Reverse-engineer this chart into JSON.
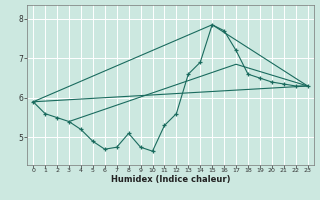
{
  "xlabel": "Humidex (Indice chaleur)",
  "bg_color": "#cce8e0",
  "grid_color": "#ffffff",
  "line_color": "#1a6b5e",
  "xlim": [
    -0.5,
    23.5
  ],
  "ylim": [
    4.3,
    8.35
  ],
  "yticks": [
    5,
    6,
    7,
    8
  ],
  "xticks": [
    0,
    1,
    2,
    3,
    4,
    5,
    6,
    7,
    8,
    9,
    10,
    11,
    12,
    13,
    14,
    15,
    16,
    17,
    18,
    19,
    20,
    21,
    22,
    23
  ],
  "line1_x": [
    0,
    1,
    2,
    3,
    4,
    5,
    6,
    7,
    8,
    9,
    10,
    11,
    12,
    13,
    14,
    15,
    16,
    17,
    18,
    19,
    20,
    21,
    22,
    23
  ],
  "line1_y": [
    5.9,
    5.6,
    5.5,
    5.4,
    5.2,
    4.9,
    4.7,
    4.75,
    5.1,
    4.75,
    4.65,
    5.3,
    5.6,
    6.6,
    6.9,
    7.85,
    7.7,
    7.2,
    6.6,
    6.5,
    6.4,
    6.35,
    6.3,
    6.3
  ],
  "line2_x": [
    0,
    23
  ],
  "line2_y": [
    5.9,
    6.3
  ],
  "line3_x": [
    0,
    15,
    23
  ],
  "line3_y": [
    5.9,
    7.85,
    6.3
  ],
  "line4_x": [
    3,
    17,
    23
  ],
  "line4_y": [
    5.4,
    6.85,
    6.3
  ]
}
